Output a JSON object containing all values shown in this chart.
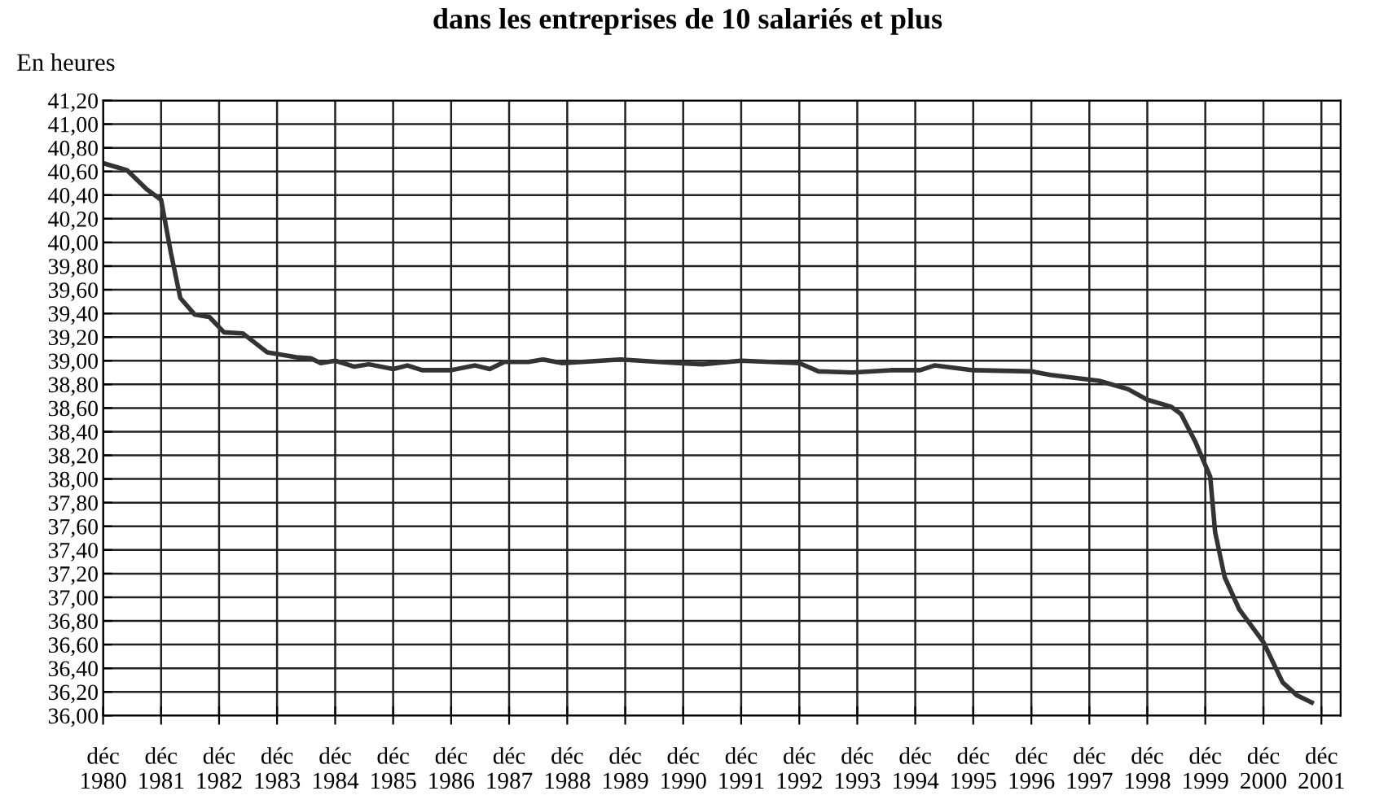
{
  "chart_data": {
    "type": "line",
    "title": "dans les entreprises de 10 salariés et plus",
    "ylabel": "En heures",
    "x": [
      "1980-12",
      "1981-05",
      "1981-09",
      "1981-12",
      "1982-02",
      "1982-04",
      "1982-07",
      "1982-10",
      "1983-01",
      "1983-05",
      "1983-10",
      "1984-04",
      "1984-07",
      "1984-09",
      "1984-12",
      "1985-04",
      "1985-07",
      "1985-12",
      "1986-03",
      "1986-06",
      "1986-12",
      "1987-05",
      "1987-08",
      "1987-11",
      "1988-04",
      "1988-07",
      "1988-11",
      "1989-11",
      "1990-11",
      "1991-04",
      "1991-12",
      "1992-12",
      "1993-04",
      "1993-11",
      "1994-07",
      "1995-01",
      "1995-04",
      "1995-12",
      "1996-12",
      "1997-04",
      "1997-12",
      "1998-02",
      "1998-08",
      "1998-12",
      "1999-05",
      "1999-07",
      "1999-10",
      "2000-01",
      "2000-02",
      "2000-04",
      "2000-07",
      "2000-12",
      "2001-04",
      "2001-07",
      "2001-10"
    ],
    "series": [
      {
        "color": "#333333",
        "values": [
          40.67,
          40.61,
          40.45,
          40.36,
          39.91,
          39.53,
          39.39,
          39.37,
          39.24,
          39.23,
          39.07,
          39.03,
          39.02,
          38.98,
          39.0,
          38.95,
          38.97,
          38.93,
          38.96,
          38.92,
          38.92,
          38.96,
          38.93,
          38.99,
          38.99,
          39.01,
          38.98,
          39.01,
          38.98,
          38.97,
          39.0,
          38.98,
          38.91,
          38.9,
          38.92,
          38.92,
          38.96,
          38.92,
          38.91,
          38.88,
          38.84,
          38.83,
          38.76,
          38.67,
          38.61,
          38.55,
          38.31,
          38.02,
          37.55,
          37.17,
          36.9,
          36.62,
          36.28,
          36.17,
          36.11
        ]
      }
    ],
    "xlim": [
      "1980-12",
      "2002-04"
    ],
    "xticks": [
      {
        "value": "1980-12",
        "label": "déc\n1980"
      },
      {
        "value": "1981-12",
        "label": "déc\n1981"
      },
      {
        "value": "1982-12",
        "label": "déc\n1982"
      },
      {
        "value": "1983-12",
        "label": "déc\n1983"
      },
      {
        "value": "1984-12",
        "label": "déc\n1984"
      },
      {
        "value": "1985-12",
        "label": "déc\n1985"
      },
      {
        "value": "1986-12",
        "label": "déc\n1986"
      },
      {
        "value": "1987-12",
        "label": "déc\n1987"
      },
      {
        "value": "1988-12",
        "label": "déc\n1988"
      },
      {
        "value": "1989-12",
        "label": "déc\n1989"
      },
      {
        "value": "1990-12",
        "label": "déc\n1990"
      },
      {
        "value": "1991-12",
        "label": "déc\n1991"
      },
      {
        "value": "1992-12",
        "label": "déc\n1992"
      },
      {
        "value": "1993-12",
        "label": "déc\n1993"
      },
      {
        "value": "1994-12",
        "label": "déc\n1994"
      },
      {
        "value": "1995-12",
        "label": "déc\n1995"
      },
      {
        "value": "1996-12",
        "label": "déc\n1996"
      },
      {
        "value": "1997-12",
        "label": "déc\n1997"
      },
      {
        "value": "1998-12",
        "label": "déc\n1998"
      },
      {
        "value": "1999-12",
        "label": "déc\n1999"
      },
      {
        "value": "2000-12",
        "label": "déc\n2000"
      },
      {
        "value": "2001-12",
        "label": "déc\n2001"
      }
    ],
    "ylim": [
      36.0,
      41.2
    ],
    "yticks": [
      {
        "value": 36.0,
        "label": "36,00"
      },
      {
        "value": 36.2,
        "label": "36,20"
      },
      {
        "value": 36.4,
        "label": "36,40"
      },
      {
        "value": 36.6,
        "label": "36,60"
      },
      {
        "value": 36.8,
        "label": "36,80"
      },
      {
        "value": 37.0,
        "label": "37,00"
      },
      {
        "value": 37.2,
        "label": "37,20"
      },
      {
        "value": 37.4,
        "label": "37,40"
      },
      {
        "value": 37.6,
        "label": "37,60"
      },
      {
        "value": 37.8,
        "label": "37,80"
      },
      {
        "value": 38.0,
        "label": "38,00"
      },
      {
        "value": 38.2,
        "label": "38,20"
      },
      {
        "value": 38.4,
        "label": "38,40"
      },
      {
        "value": 38.6,
        "label": "38,60"
      },
      {
        "value": 38.8,
        "label": "38,80"
      },
      {
        "value": 39.0,
        "label": "39,00"
      },
      {
        "value": 39.2,
        "label": "39,20"
      },
      {
        "value": 39.4,
        "label": "39,40"
      },
      {
        "value": 39.6,
        "label": "39,60"
      },
      {
        "value": 39.8,
        "label": "39,80"
      },
      {
        "value": 40.0,
        "label": "40,00"
      },
      {
        "value": 40.2,
        "label": "40,20"
      },
      {
        "value": 40.4,
        "label": "40,40"
      },
      {
        "value": 40.6,
        "label": "40,60"
      },
      {
        "value": 40.8,
        "label": "40,80"
      },
      {
        "value": 41.0,
        "label": "41,00"
      },
      {
        "value": 41.2,
        "label": "41,20"
      }
    ],
    "grid": true,
    "line_style": "solid",
    "marker": "none"
  }
}
